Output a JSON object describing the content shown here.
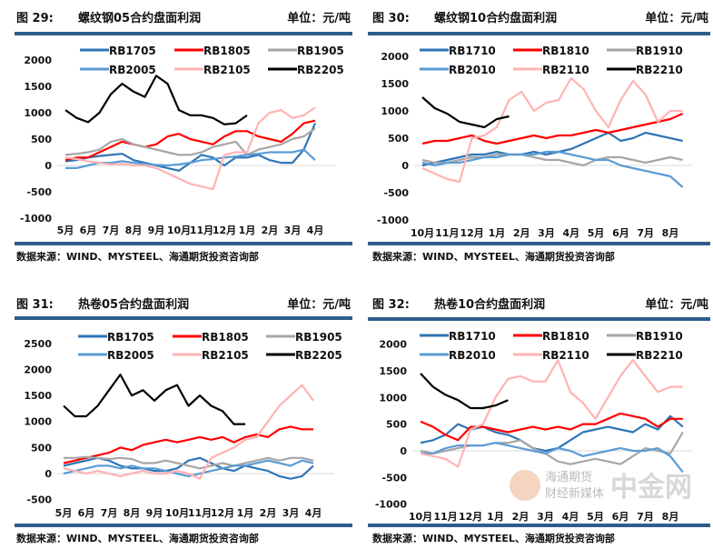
{
  "chart_data": [
    {
      "type": "line",
      "figure_label": "图 29:",
      "title": "螺纹钢05合约盘面利润",
      "unit": "单位：元/吨",
      "ylim": [
        -1000,
        2000
      ],
      "yticks": [
        "2000",
        "1500",
        "1000",
        "500",
        "0",
        "-500",
        "-1000"
      ],
      "ytick_values": [
        2000,
        1500,
        1000,
        500,
        0,
        -500,
        -1000
      ],
      "xticks": [
        "5月",
        "6月",
        "7月",
        "8月",
        "9月",
        "10月",
        "11月",
        "12月",
        "1月",
        "2月",
        "3月",
        "4月"
      ],
      "x_step": 0.5,
      "source": "数据来源：WIND、MYSTEEL、海通期货投资咨询部",
      "series": [
        {
          "name": "RB1705",
          "color": "#2e75b6",
          "values": [
            80,
            100,
            150,
            180,
            200,
            220,
            100,
            50,
            0,
            -50,
            -100,
            50,
            200,
            150,
            0,
            150,
            150,
            200,
            100,
            50,
            50,
            300,
            800
          ]
        },
        {
          "name": "RB1805",
          "color": "#ff0000",
          "values": [
            100,
            150,
            150,
            250,
            350,
            450,
            400,
            350,
            400,
            550,
            600,
            500,
            450,
            400,
            550,
            650,
            650,
            550,
            500,
            450,
            600,
            800,
            850
          ]
        },
        {
          "name": "RB1905",
          "color": "#a6a6a6",
          "values": [
            200,
            220,
            250,
            300,
            450,
            500,
            400,
            350,
            300,
            250,
            200,
            200,
            250,
            350,
            400,
            450,
            200,
            300,
            350,
            400,
            500,
            550,
            700
          ]
        },
        {
          "name": "RB2005",
          "color": "#5b9bd5",
          "values": [
            -50,
            -50,
            0,
            50,
            50,
            80,
            50,
            30,
            10,
            0,
            20,
            50,
            100,
            120,
            150,
            170,
            200,
            220,
            250,
            250,
            250,
            300,
            100
          ]
        },
        {
          "name": "RB2105",
          "color": "#ffb3b3",
          "values": [
            150,
            120,
            80,
            50,
            20,
            30,
            0,
            0,
            -50,
            -150,
            -250,
            -350,
            -400,
            -450,
            200,
            250,
            250,
            800,
            1000,
            1050,
            900,
            950,
            1100
          ]
        },
        {
          "name": "RB2205",
          "color": "#000000",
          "values": [
            1050,
            900,
            820,
            1000,
            1350,
            1550,
            1400,
            1300,
            1700,
            1550,
            1050,
            950,
            950,
            900,
            780,
            800,
            950
          ]
        }
      ]
    },
    {
      "type": "line",
      "figure_label": "图 30:",
      "title": "螺纹钢10合约盘面利润",
      "unit": "单位：元/吨",
      "ylim": [
        -1000,
        2000
      ],
      "yticks": [
        "2000",
        "1500",
        "1000",
        "500",
        "0",
        "-500",
        "-1000"
      ],
      "ytick_values": [
        2000,
        1500,
        1000,
        500,
        0,
        -500,
        -1000
      ],
      "xticks": [
        "10月",
        "11月",
        "12月",
        "1月",
        "2月",
        "3月",
        "4月",
        "5月",
        "6月",
        "7月",
        "8月"
      ],
      "x_step": 0.5,
      "source": "数据来源：WIND、MYSTEEL、海通期货投资咨询部",
      "series": [
        {
          "name": "RB1710",
          "color": "#2e75b6",
          "values": [
            0,
            50,
            100,
            150,
            200,
            200,
            250,
            200,
            200,
            250,
            200,
            250,
            300,
            400,
            500,
            600,
            450,
            500,
            600,
            550,
            500,
            450
          ]
        },
        {
          "name": "RB1810",
          "color": "#ff0000",
          "values": [
            400,
            450,
            450,
            500,
            550,
            450,
            400,
            450,
            500,
            550,
            500,
            550,
            550,
            600,
            650,
            600,
            650,
            700,
            750,
            800,
            850,
            950
          ]
        },
        {
          "name": "RB1910",
          "color": "#a6a6a6",
          "values": [
            100,
            50,
            50,
            100,
            150,
            150,
            200,
            200,
            200,
            150,
            100,
            100,
            50,
            0,
            100,
            150,
            150,
            100,
            50,
            100,
            150,
            100
          ]
        },
        {
          "name": "RB2010",
          "color": "#5b9bd5",
          "values": [
            50,
            0,
            50,
            50,
            100,
            150,
            150,
            200,
            200,
            200,
            250,
            250,
            200,
            150,
            100,
            100,
            0,
            -50,
            -100,
            -150,
            -200,
            -400
          ]
        },
        {
          "name": "RB2110",
          "color": "#ffb3b3",
          "values": [
            -50,
            -150,
            -250,
            -300,
            500,
            550,
            700,
            1200,
            1350,
            1000,
            1150,
            1200,
            1600,
            1400,
            1000,
            700,
            1200,
            1550,
            1300,
            800,
            1000,
            1000
          ]
        },
        {
          "name": "RB2210",
          "color": "#000000",
          "values": [
            1250,
            1050,
            950,
            800,
            750,
            700,
            850,
            900
          ]
        }
      ]
    },
    {
      "type": "line",
      "figure_label": "图 31:",
      "title": "热卷05合约盘面利润",
      "unit": "单位：元/吨",
      "ylim": [
        -500,
        2500
      ],
      "yticks": [
        "2500",
        "2000",
        "1500",
        "1000",
        "500",
        "0",
        "-500"
      ],
      "ytick_values": [
        2500,
        2000,
        1500,
        1000,
        500,
        0,
        -500
      ],
      "xticks": [
        "5月",
        "6月",
        "7月",
        "8月",
        "9月",
        "10月",
        "11月",
        "12月",
        "1月",
        "2月",
        "3月",
        "4月"
      ],
      "x_step": 0.5,
      "source": "数据来源：WIND、MYSTEEL、海通期货投资咨询部",
      "series": [
        {
          "name": "RB1705",
          "color": "#2e75b6",
          "values": [
            150,
            200,
            250,
            300,
            250,
            150,
            100,
            100,
            50,
            50,
            100,
            250,
            300,
            200,
            100,
            50,
            150,
            100,
            50,
            -50,
            -100,
            -50,
            150
          ]
        },
        {
          "name": "RB1805",
          "color": "#ff0000",
          "values": [
            200,
            250,
            300,
            350,
            400,
            500,
            450,
            550,
            600,
            650,
            600,
            650,
            700,
            650,
            700,
            600,
            700,
            750,
            700,
            850,
            900,
            850,
            850
          ]
        },
        {
          "name": "RB1905",
          "color": "#a6a6a6",
          "values": [
            300,
            300,
            320,
            300,
            280,
            300,
            280,
            200,
            200,
            250,
            200,
            150,
            100,
            150,
            200,
            150,
            200,
            250,
            300,
            250,
            300,
            300,
            250
          ]
        },
        {
          "name": "RB2005",
          "color": "#5b9bd5",
          "values": [
            0,
            50,
            100,
            150,
            150,
            100,
            150,
            100,
            100,
            50,
            0,
            -50,
            0,
            50,
            100,
            150,
            150,
            200,
            250,
            200,
            150,
            250,
            200
          ]
        },
        {
          "name": "RB2105",
          "color": "#ffb3b3",
          "values": [
            100,
            50,
            0,
            50,
            0,
            -50,
            0,
            50,
            0,
            0,
            50,
            0,
            -100,
            300,
            400,
            500,
            650,
            700,
            1000,
            1300,
            1500,
            1700,
            1400
          ]
        },
        {
          "name": "RB2205",
          "color": "#000000",
          "values": [
            1300,
            1100,
            1100,
            1300,
            1600,
            1900,
            1500,
            1600,
            1400,
            1600,
            1700,
            1300,
            1500,
            1300,
            1200,
            950,
            950
          ]
        }
      ]
    },
    {
      "type": "line",
      "figure_label": "图 32:",
      "title": "热卷10合约盘面利润",
      "unit": "单位：元/吨",
      "ylim": [
        -1000,
        2000
      ],
      "yticks": [
        "2000",
        "1500",
        "1000",
        "500",
        "0",
        "-500",
        "-1000"
      ],
      "ytick_values": [
        2000,
        1500,
        1000,
        500,
        0,
        -500,
        -1000
      ],
      "xticks": [
        "10月",
        "11月",
        "12月",
        "1月",
        "2月",
        "3月",
        "4月",
        "5月",
        "6月",
        "7月",
        "8月"
      ],
      "x_step": 0.5,
      "source": "数据来源：WIND、MYSTEEL、海通期货投资咨询部",
      "series": [
        {
          "name": "RB1710",
          "color": "#2e75b6",
          "values": [
            150,
            200,
            300,
            500,
            400,
            450,
            350,
            300,
            200,
            50,
            0,
            50,
            200,
            350,
            400,
            450,
            400,
            350,
            500,
            400,
            650,
            450
          ]
        },
        {
          "name": "RB1810",
          "color": "#ff0000",
          "values": [
            550,
            450,
            300,
            200,
            450,
            450,
            400,
            350,
            400,
            450,
            400,
            450,
            400,
            500,
            500,
            600,
            700,
            650,
            600,
            450,
            600,
            600
          ]
        },
        {
          "name": "RB1910",
          "color": "#a6a6a6",
          "values": [
            0,
            -50,
            0,
            50,
            100,
            100,
            150,
            150,
            200,
            50,
            -50,
            -200,
            -250,
            -200,
            -150,
            -200,
            -250,
            -100,
            50,
            0,
            -50,
            350
          ]
        },
        {
          "name": "RB2010",
          "color": "#5b9bd5",
          "values": [
            -50,
            -50,
            50,
            100,
            100,
            100,
            150,
            100,
            50,
            0,
            -50,
            50,
            0,
            -100,
            -50,
            0,
            50,
            0,
            0,
            50,
            -100,
            -400
          ]
        },
        {
          "name": "RB2110",
          "color": "#ffb3b3",
          "values": [
            -50,
            -100,
            -150,
            -300,
            400,
            500,
            1000,
            1350,
            1400,
            1300,
            1300,
            1700,
            1100,
            900,
            600,
            1000,
            1400,
            1700,
            1400,
            1100,
            1200,
            1200
          ]
        },
        {
          "name": "RB2210",
          "color": "#000000",
          "values": [
            1450,
            1200,
            1050,
            950,
            800,
            800,
            850,
            950
          ]
        }
      ]
    }
  ],
  "watermark": {
    "brand": "中金网",
    "sub1": "海通期货",
    "sub2": "财经新媒体"
  }
}
